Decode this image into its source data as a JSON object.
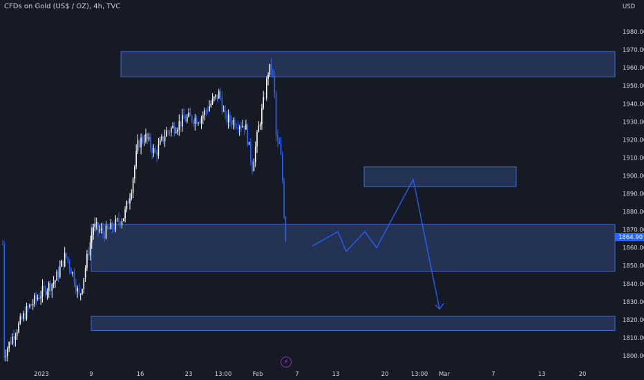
{
  "header": {
    "title": "CFDs on Gold (US$ / OZ), 4h, TVC"
  },
  "currency": "USD",
  "last_price": "1864.90",
  "chart_data": {
    "type": "candlestick",
    "yaxis": {
      "min": 1795,
      "max": 1990,
      "ticks": [
        1980,
        1970,
        1960,
        1950,
        1940,
        1930,
        1920,
        1910,
        1900,
        1890,
        1880,
        1870,
        1860,
        1850,
        1840,
        1830,
        1820,
        1810,
        1800
      ]
    },
    "xaxis": {
      "labels": [
        "2023",
        "9",
        "16",
        "23",
        "13:00",
        "Feb",
        "7",
        "13",
        "20",
        "13:00",
        "Mar",
        "7",
        "13",
        "20"
      ]
    },
    "zones": [
      {
        "from": 1955,
        "to": 1969
      },
      {
        "from": 1894,
        "to": 1905
      },
      {
        "from": 1847,
        "to": 1873
      },
      {
        "from": 1814,
        "to": 1822
      }
    ],
    "projection_path": [
      1861,
      1869,
      1858,
      1869,
      1860,
      1898,
      1826
    ],
    "colors": {
      "up": "#ffffff",
      "down": "#2962ff",
      "zone": "#2a3b63",
      "zoneBorder": "#3c6cd6",
      "arrow": "#2962ff"
    }
  }
}
